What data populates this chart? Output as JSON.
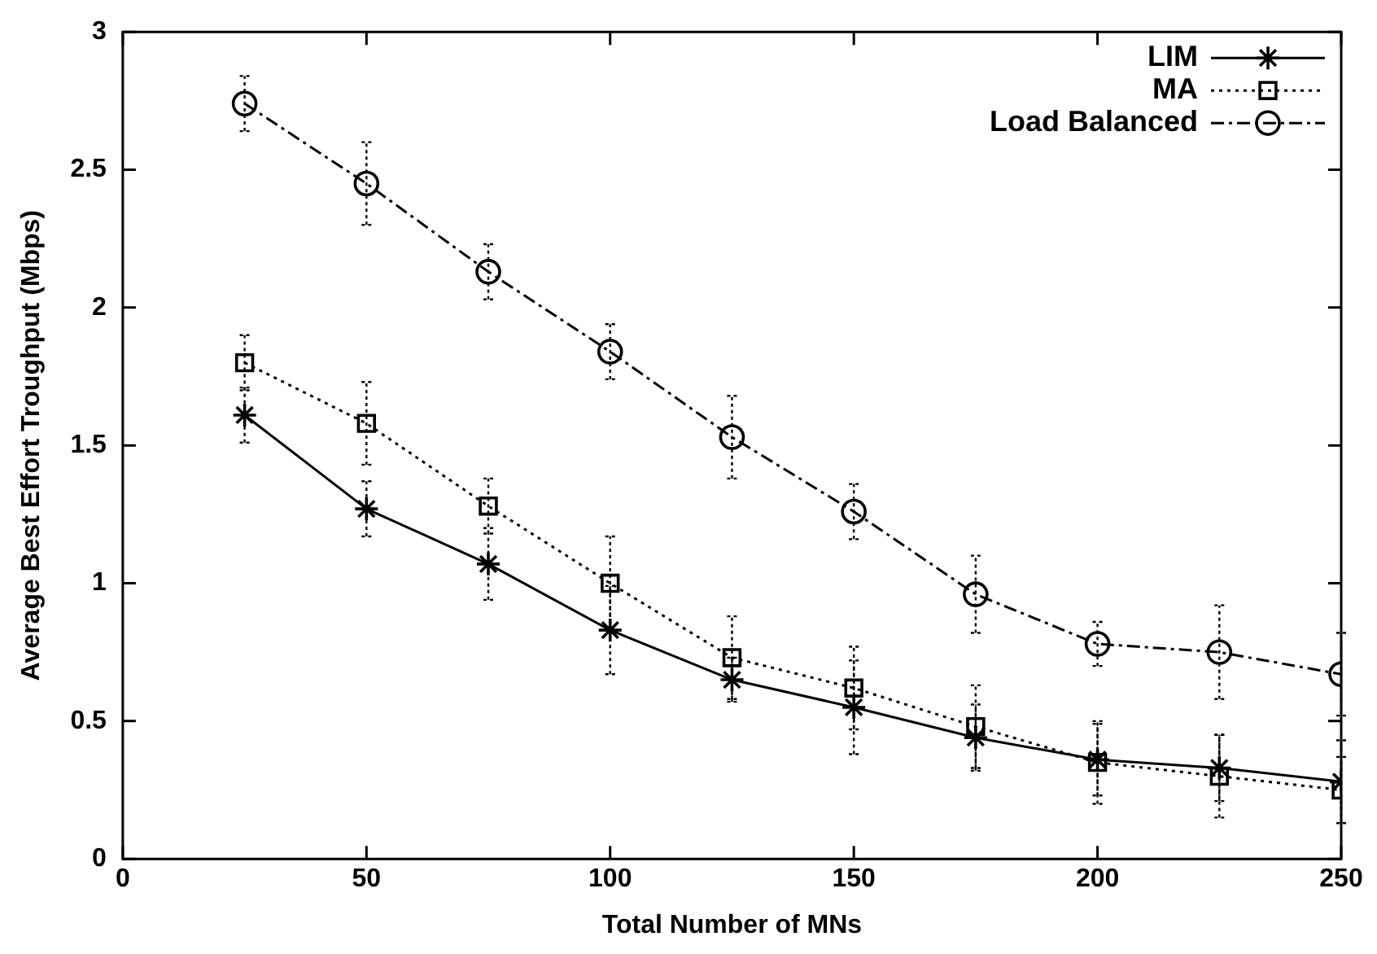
{
  "chart_data": {
    "type": "line",
    "xlabel": "Total Number of MNs",
    "ylabel": "Average Best Effort Troughput (Mbps)",
    "x": [
      25,
      50,
      75,
      100,
      125,
      150,
      175,
      200,
      225,
      250
    ],
    "series": [
      {
        "name": "LIM",
        "color": "#000000",
        "marker": "cross",
        "line_style": "solid",
        "values": [
          1.61,
          1.27,
          1.07,
          0.83,
          0.65,
          0.55,
          0.44,
          0.36,
          0.33,
          0.28
        ],
        "errors": [
          0.1,
          0.1,
          0.13,
          0.16,
          0.08,
          0.17,
          0.12,
          0.13,
          0.12,
          0.15
        ]
      },
      {
        "name": "MA",
        "color": "#000000",
        "marker": "square",
        "line_style": "dotted",
        "values": [
          1.8,
          1.58,
          1.28,
          1.0,
          0.73,
          0.62,
          0.48,
          0.35,
          0.3,
          0.25
        ],
        "errors": [
          0.1,
          0.15,
          0.1,
          0.17,
          0.15,
          0.15,
          0.15,
          0.15,
          0.15,
          0.12
        ]
      },
      {
        "name": "Load Balanced",
        "color": "#000000",
        "marker": "circle",
        "line_style": "dashed",
        "values": [
          2.74,
          2.45,
          2.13,
          1.84,
          1.53,
          1.26,
          0.96,
          0.78,
          0.75,
          0.67
        ],
        "errors": [
          0.1,
          0.15,
          0.1,
          0.1,
          0.15,
          0.1,
          0.14,
          0.08,
          0.17,
          0.15
        ]
      }
    ],
    "xlim": [
      0,
      250
    ],
    "xticks": [
      0,
      50,
      100,
      150,
      200,
      250
    ],
    "ylim": [
      0,
      3
    ],
    "yticks": [
      0,
      0.5,
      1,
      1.5,
      2,
      2.5,
      3
    ],
    "grid": false,
    "legend": "top right"
  }
}
